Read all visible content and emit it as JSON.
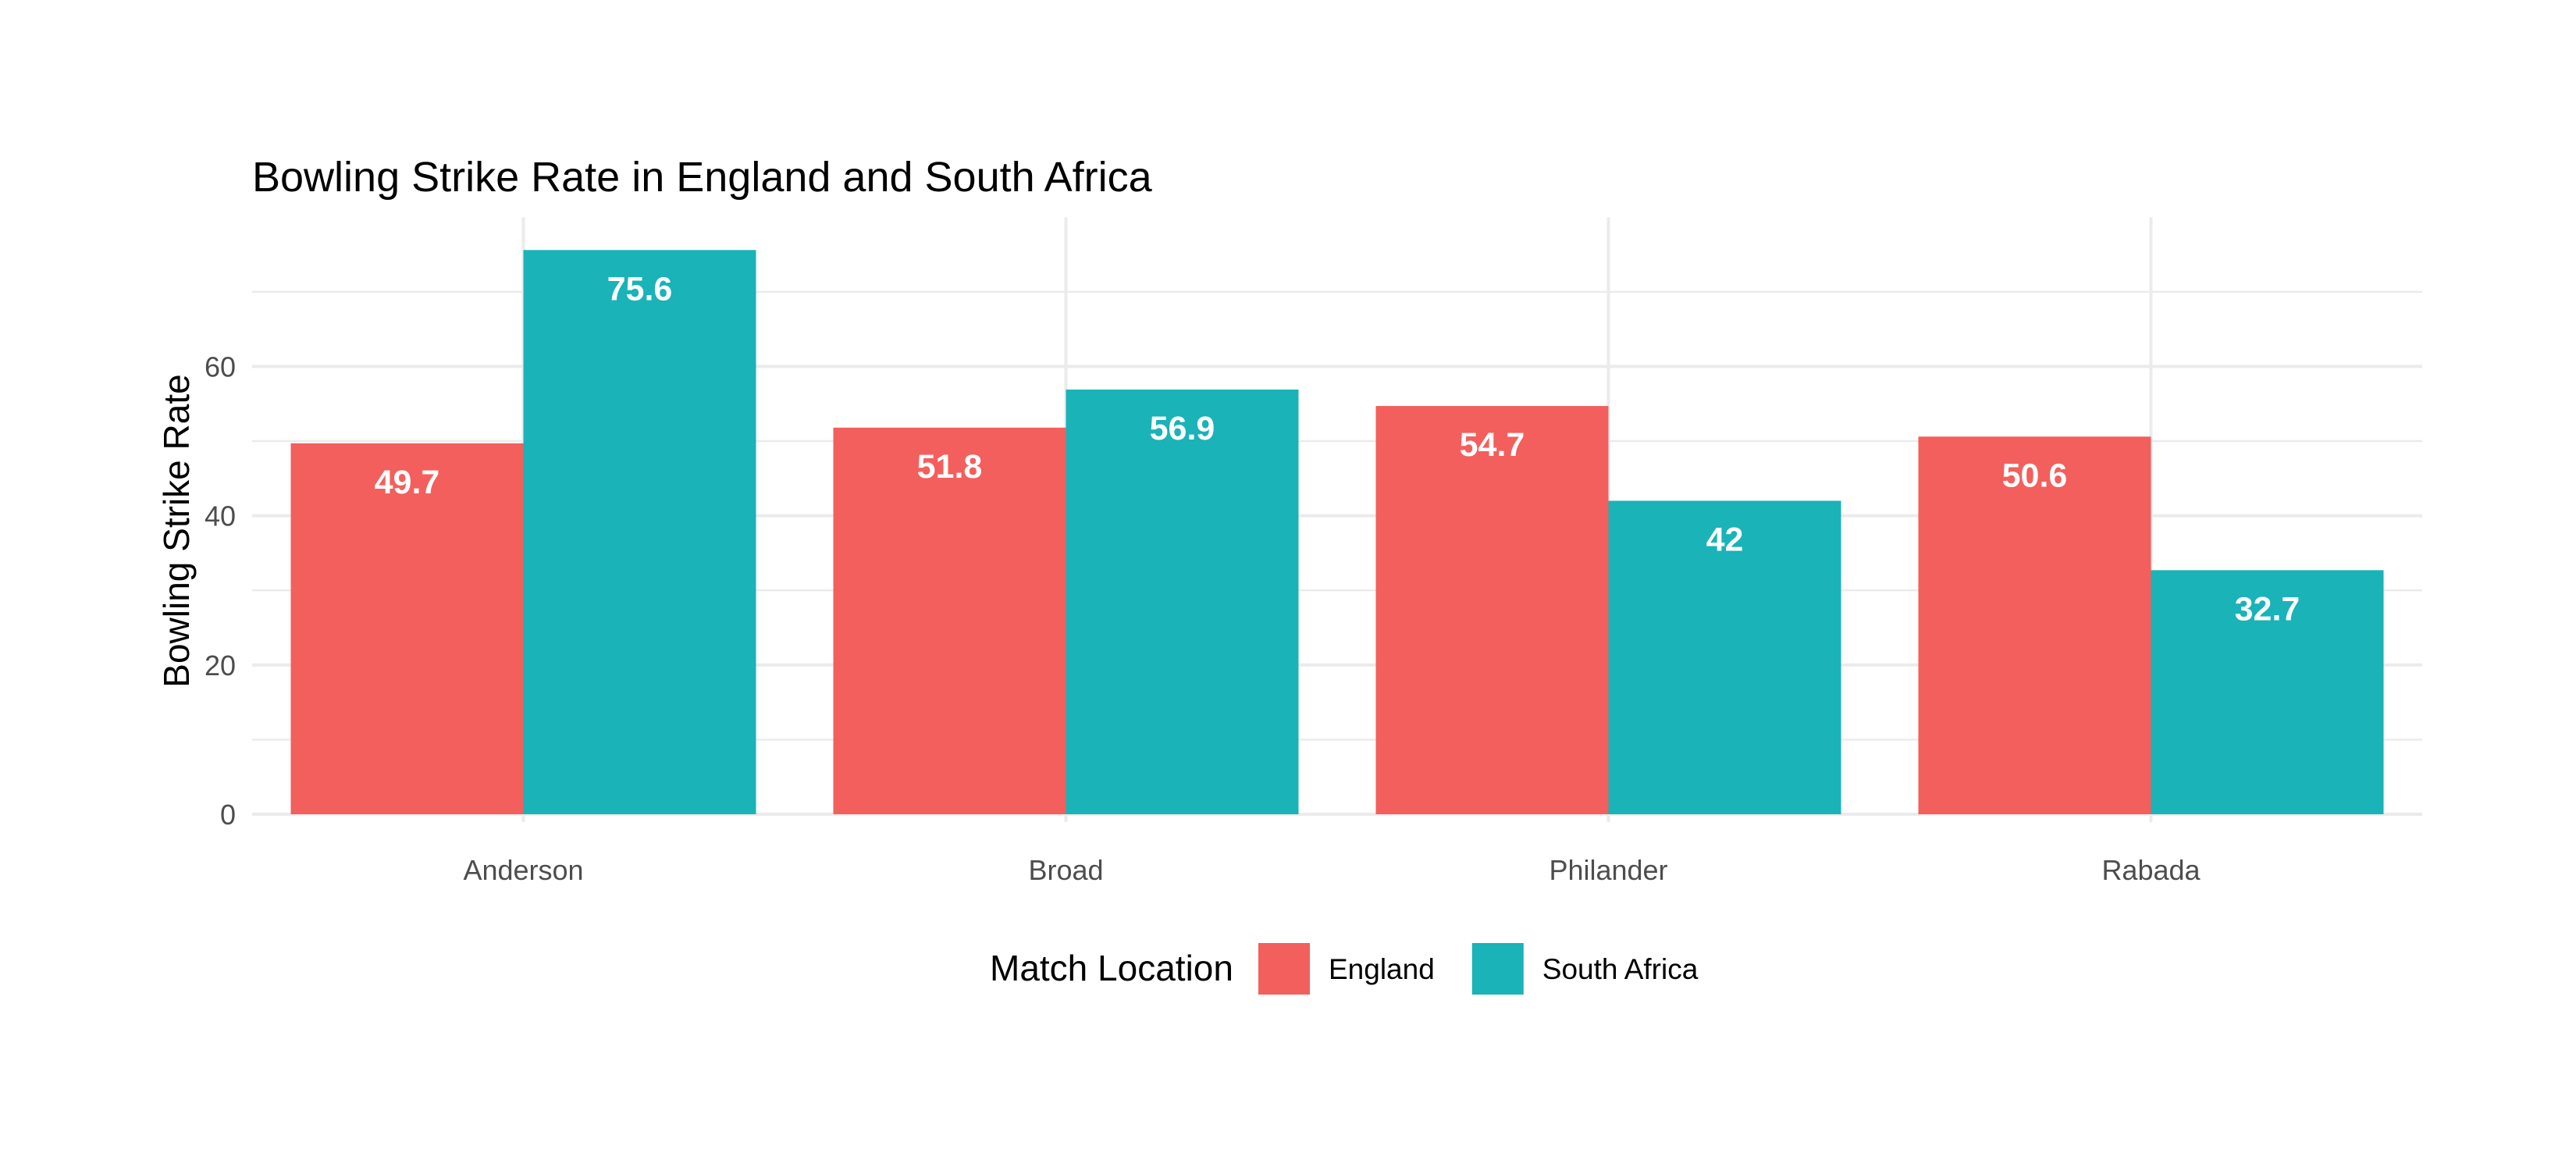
{
  "chart_data": {
    "type": "bar",
    "title": "Bowling Strike Rate in England and South Africa",
    "xlabel": "",
    "ylabel": "Bowling Strike Rate",
    "categories": [
      "Anderson",
      "Broad",
      "Philander",
      "Rabada"
    ],
    "series": [
      {
        "name": "England",
        "color": "#F35F5C",
        "values": [
          49.7,
          51.8,
          54.7,
          50.6
        ]
      },
      {
        "name": "South Africa",
        "color": "#19B3B8",
        "values": [
          75.6,
          56.9,
          42,
          32.7
        ]
      }
    ],
    "ylim": [
      0,
      80
    ],
    "yticks": [
      0,
      20,
      40,
      60
    ],
    "grid": true,
    "legend": {
      "title": "Match Location",
      "position": "bottom"
    }
  }
}
